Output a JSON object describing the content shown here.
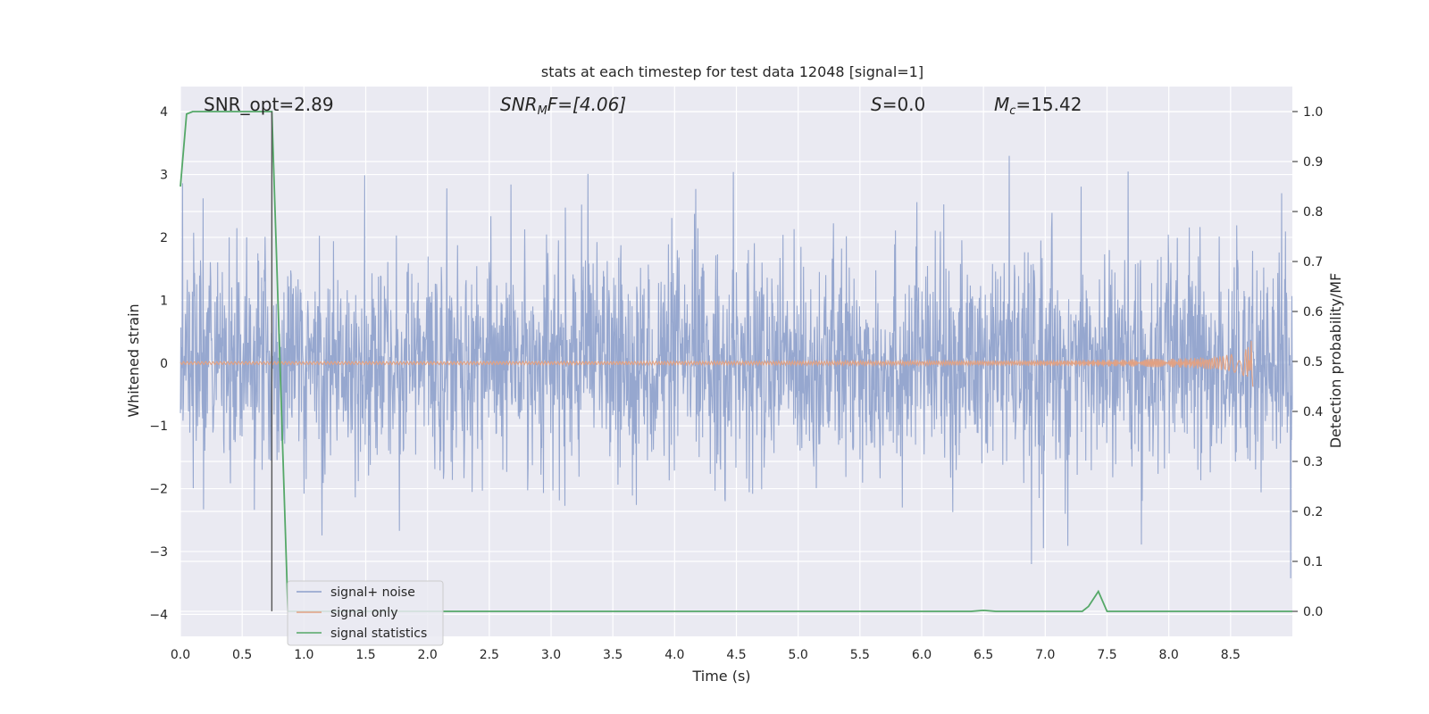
{
  "chart_data": {
    "type": "line",
    "title": "stats at each timestep for test data 12048 [signal=1]",
    "xlabel": "Time (s)",
    "ylabel_left": "Whitened strain",
    "ylabel_right": "Detection probability/MF",
    "xlim": [
      0.0,
      9.0
    ],
    "ylim_left": [
      -4.35,
      4.4
    ],
    "ylim_right": [
      -0.05,
      1.05
    ],
    "xticks": [
      "0.0",
      "0.5",
      "1.0",
      "1.5",
      "2.0",
      "2.5",
      "3.0",
      "3.5",
      "4.0",
      "4.5",
      "5.0",
      "5.5",
      "6.0",
      "6.5",
      "7.0",
      "7.5",
      "8.0",
      "8.5"
    ],
    "yticks_left": [
      "4",
      "3",
      "2",
      "1",
      "0",
      "−1",
      "−2",
      "−3",
      "−4"
    ],
    "yticks_right": [
      "1.0",
      "0.9",
      "0.8",
      "0.7",
      "0.6",
      "0.5",
      "0.4",
      "0.3",
      "0.2",
      "0.1",
      "0.0"
    ],
    "grid": true,
    "legend_position": "lower-left",
    "annotations": {
      "snr_opt": "SNR_opt=2.89",
      "snr_mf_main": "SNR",
      "snr_mf_sub": "M",
      "snr_mf_rest": "F=[4.06]",
      "s_main": "S",
      "s_rest": "=0.0",
      "mc_main": "M",
      "mc_sub": "c",
      "mc_rest": "=15.42"
    },
    "series": [
      {
        "name": "signal+ noise",
        "color": "#8da0cb",
        "description_range": [
          -3.95,
          4.0
        ]
      },
      {
        "name": "signal only",
        "color": "#e1a183"
      },
      {
        "name": "signal statistics",
        "color": "#55a868",
        "x": [
          0.0,
          0.05,
          0.1,
          0.7,
          0.74,
          0.87,
          6.4,
          6.5,
          6.6,
          7.3,
          7.35,
          7.43,
          7.5,
          9.0
        ],
        "y": [
          0.85,
          0.995,
          1.0,
          1.0,
          1.0,
          0.0,
          0.0,
          0.002,
          0.0,
          0.0,
          0.01,
          0.04,
          0.0,
          0.0
        ]
      }
    ],
    "marker_line": {
      "x": 0.74,
      "y_from": -3.95,
      "y_to": 4.0,
      "color": "#555555"
    },
    "colors": {
      "plot_bg": "#eaeaf2",
      "grid": "#ffffff",
      "noise": "#8da0cb",
      "signal": "#e1a183",
      "stats": "#55a868"
    }
  }
}
